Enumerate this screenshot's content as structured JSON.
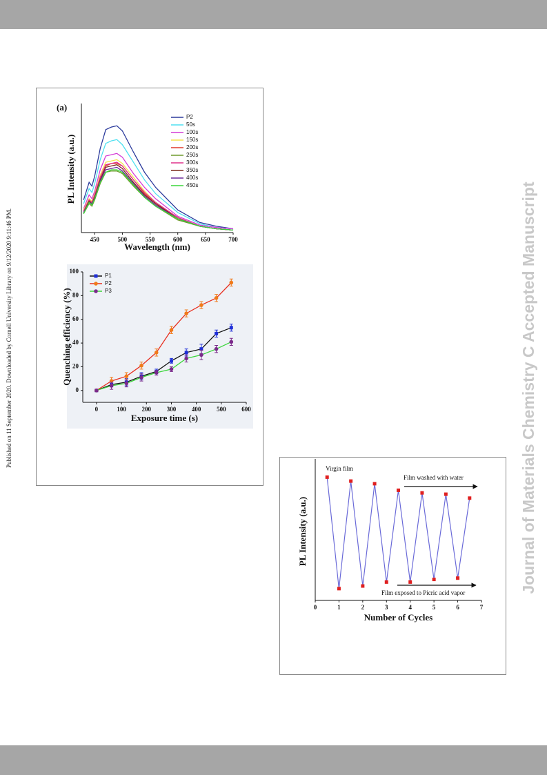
{
  "side_note": "Published on 11 September 2020. Downloaded by Cornell University Library on 9/12/2020 9:11:46 PM.",
  "watermark": "Journal of Materials Chemistry C Accepted Manuscript",
  "chart_data": [
    {
      "type": "line",
      "title": "(a)",
      "x_label": "Wavelength (nm)",
      "y_label": "PL Intensity (a.u.)",
      "x": [
        430,
        440,
        445,
        450,
        460,
        470,
        480,
        490,
        500,
        520,
        540,
        560,
        600,
        640,
        670,
        700
      ],
      "xlim": [
        426,
        700
      ],
      "xticks": [
        450,
        500,
        550,
        600,
        650,
        700
      ],
      "ylim": [
        0,
        100
      ],
      "series": [
        {
          "name": "P2",
          "color": "#2b3a9c",
          "values": [
            26,
            40,
            37,
            45,
            67,
            82,
            84,
            85,
            81,
            64,
            48,
            36,
            18,
            8,
            5,
            3
          ]
        },
        {
          "name": "50s",
          "color": "#4fe0f0",
          "values": [
            23,
            35,
            32,
            39,
            58,
            71,
            73,
            74,
            70,
            56,
            42,
            31,
            16,
            7,
            4,
            3
          ]
        },
        {
          "name": "100s",
          "color": "#d43bd6",
          "values": [
            19,
            30,
            27,
            33,
            50,
            61,
            62,
            63,
            60,
            47,
            36,
            27,
            13,
            6,
            4,
            3
          ]
        },
        {
          "name": "150s",
          "color": "#f5e44a",
          "values": [
            18,
            27,
            25,
            31,
            46,
            56,
            57,
            58,
            55,
            44,
            33,
            24,
            12,
            5,
            3,
            2
          ]
        },
        {
          "name": "200s",
          "color": "#e03a2a",
          "values": [
            17,
            26,
            24,
            29,
            44,
            53,
            55,
            55,
            53,
            42,
            31,
            23,
            12,
            5,
            3,
            2
          ]
        },
        {
          "name": "250s",
          "color": "#6f9a2b",
          "values": [
            15,
            23,
            21,
            26,
            39,
            48,
            49,
            49,
            47,
            37,
            28,
            21,
            10,
            5,
            3,
            2
          ]
        },
        {
          "name": "300s",
          "color": "#e0308a",
          "values": [
            17,
            26,
            24,
            30,
            44,
            54,
            55,
            56,
            53,
            42,
            32,
            24,
            12,
            5,
            3,
            2
          ]
        },
        {
          "name": "350s",
          "color": "#7a2a1a",
          "values": [
            16,
            25,
            23,
            28,
            42,
            52,
            53,
            54,
            51,
            40,
            30,
            23,
            11,
            5,
            3,
            2
          ]
        },
        {
          "name": "400s",
          "color": "#6a2a9a",
          "values": [
            16,
            24,
            23,
            27,
            41,
            50,
            51,
            52,
            49,
            39,
            29,
            22,
            11,
            5,
            3,
            2
          ]
        },
        {
          "name": "450s",
          "color": "#3ad63a",
          "values": [
            15,
            24,
            22,
            27,
            40,
            48,
            50,
            50,
            48,
            38,
            28,
            21,
            11,
            5,
            3,
            2
          ]
        }
      ]
    },
    {
      "type": "line",
      "x_label": "Exposure time (s)",
      "y_label": "Quenching efficiency (%)",
      "x": [
        0,
        60,
        120,
        180,
        240,
        300,
        360,
        420,
        480,
        540
      ],
      "xlim": [
        -55,
        600
      ],
      "xticks": [
        0,
        100,
        200,
        300,
        400,
        500,
        600
      ],
      "ylim": [
        -10,
        100
      ],
      "yticks": [
        0,
        20,
        40,
        60,
        80,
        100
      ],
      "series": [
        {
          "name": "P1",
          "color": "#1f2fd8",
          "line_color": "#111111",
          "marker": "square",
          "values": [
            0,
            5,
            7,
            12,
            16,
            25,
            32,
            35,
            48,
            53
          ],
          "errors": [
            1,
            2,
            3,
            3,
            2,
            2,
            3,
            4,
            3,
            3
          ]
        },
        {
          "name": "P2",
          "color": "#f07a1a",
          "line_color": "#e83020",
          "marker": "circle",
          "values": [
            0,
            8,
            12,
            21,
            32,
            51,
            65,
            72,
            78,
            91
          ],
          "errors": [
            1,
            3,
            3,
            3,
            3,
            3,
            3,
            3,
            3,
            3
          ]
        },
        {
          "name": "P3",
          "color": "#7a2a8a",
          "line_color": "#3ad63a",
          "marker": "circle",
          "values": [
            0,
            4,
            6,
            11,
            15,
            18,
            27,
            30,
            35,
            41
          ],
          "errors": [
            1,
            3,
            3,
            3,
            2,
            2,
            3,
            4,
            3,
            3
          ]
        }
      ]
    },
    {
      "type": "line",
      "x_label": "Number of Cycles",
      "y_label": "PL Intensity (a.u.)",
      "x": [
        0.5,
        1,
        1.5,
        2,
        2.5,
        3,
        3.5,
        4,
        4.5,
        5,
        5.5,
        6,
        6.5
      ],
      "xlim": [
        0,
        7
      ],
      "xticks": [
        0,
        1,
        2,
        3,
        4,
        5,
        6,
        7
      ],
      "ylim": [
        0,
        100
      ],
      "annotations": [
        "Virgin film",
        "Film washed with water",
        "Film exposed to Picric acid vapor"
      ],
      "series": [
        {
          "color": "#e02020",
          "line_color": "#6a6ad8",
          "marker": "square",
          "values": [
            94,
            9,
            91,
            11,
            89,
            14,
            84,
            14,
            82,
            16,
            81,
            17,
            78
          ]
        }
      ]
    }
  ]
}
